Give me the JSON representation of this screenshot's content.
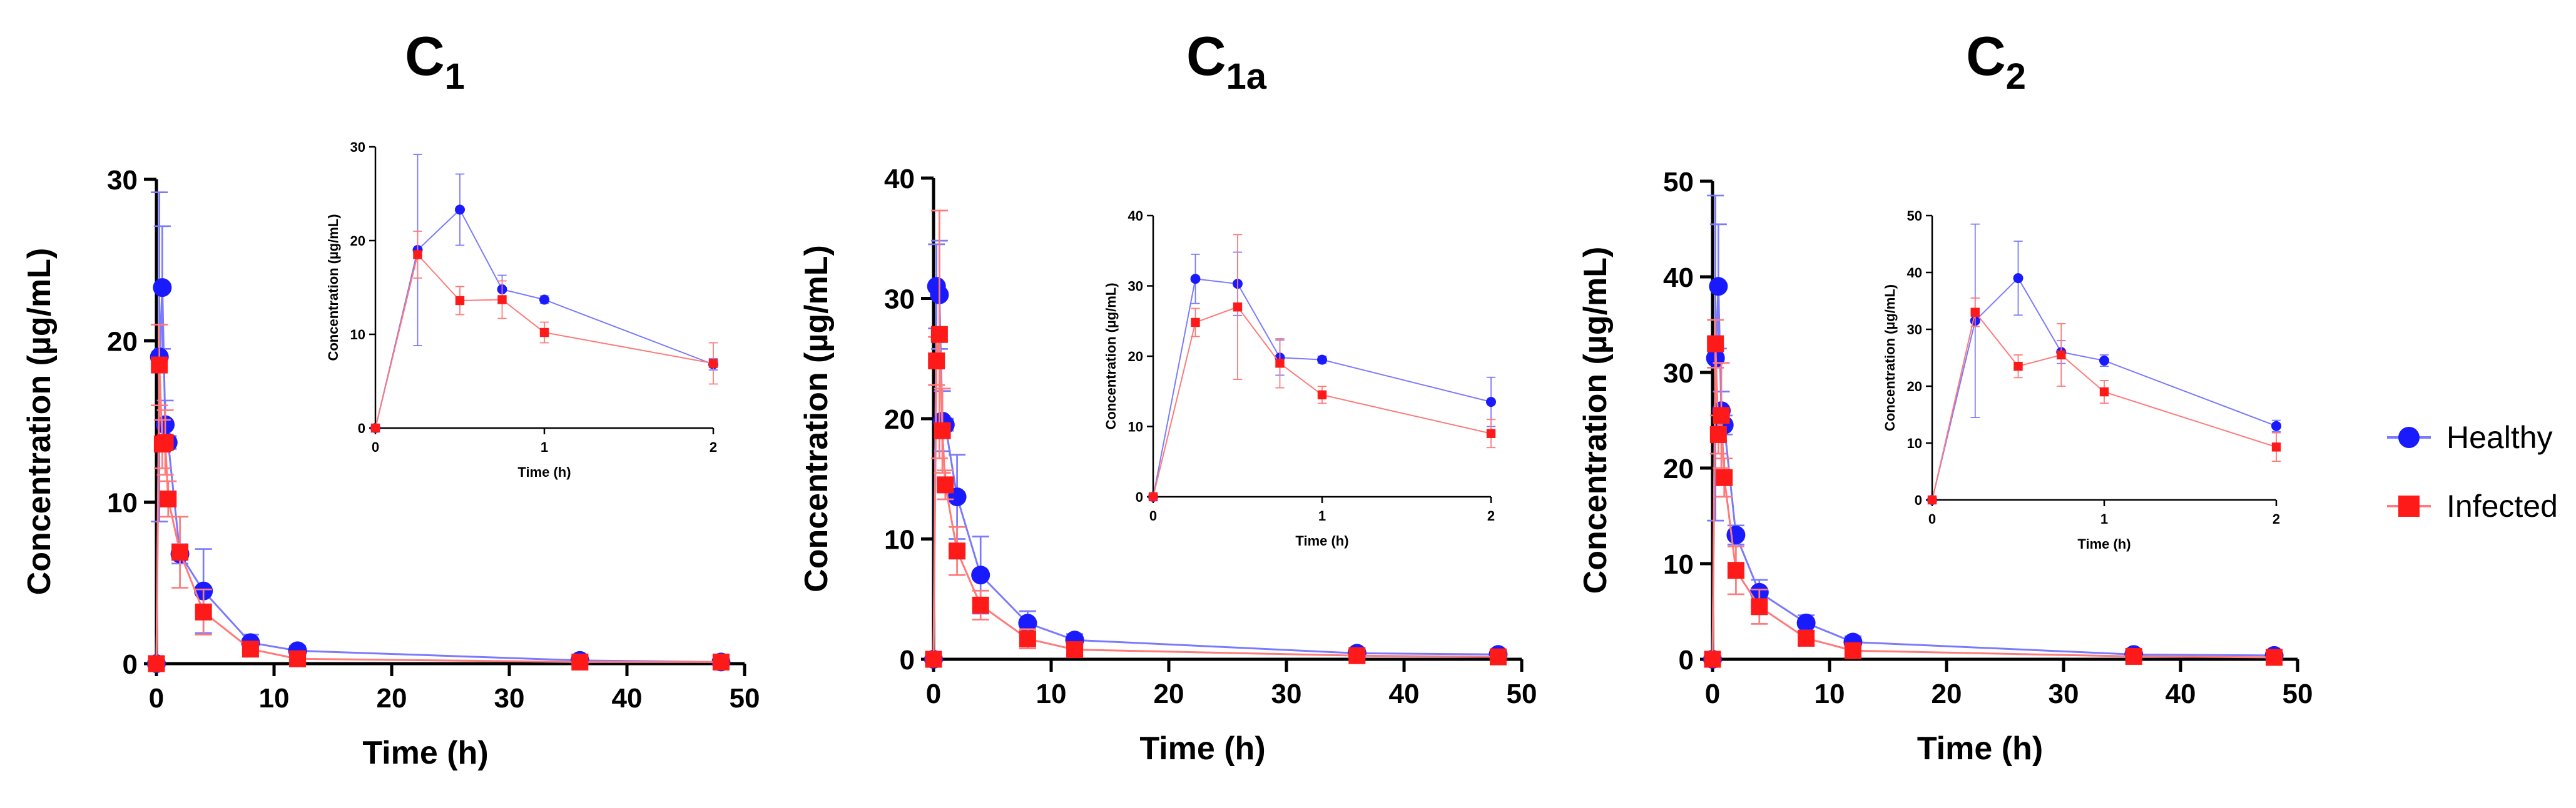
{
  "colors": {
    "healthy": "#1a1aff",
    "infected": "#ff1a1a",
    "healthy_line": "#7a7aff",
    "infected_line": "#ff7a7a",
    "axis": "#000000"
  },
  "legend": {
    "items": [
      {
        "label": "Healthy",
        "series": "healthy",
        "marker": "circle"
      },
      {
        "label": "Infected",
        "series": "infected",
        "marker": "square"
      }
    ],
    "position": "right"
  },
  "chart_data": [
    {
      "type": "line",
      "title": "C",
      "title_subscript": "1",
      "xlabel": "Time (h)",
      "ylabel": "Concentration (µg/mL)",
      "xlim": [
        0,
        50
      ],
      "ylim": [
        0,
        30
      ],
      "xticks": [
        0,
        10,
        20,
        30,
        40,
        50
      ],
      "yticks": [
        0,
        10,
        20,
        30
      ],
      "x": [
        0,
        0.25,
        0.5,
        0.75,
        1,
        2,
        4,
        8,
        12,
        36,
        48
      ],
      "series": [
        {
          "name": "Healthy",
          "values": [
            0,
            19,
            23.3,
            14.8,
            13.7,
            6.8,
            4.5,
            1.3,
            0.8,
            0.2,
            0.1
          ],
          "err": [
            0,
            10.2,
            3.8,
            1.5,
            0.4,
            0.6,
            2.6,
            0.5,
            0.3,
            0.2,
            0.1
          ]
        },
        {
          "name": "Infected",
          "values": [
            0,
            18.5,
            13.6,
            13.7,
            10.2,
            6.9,
            3.2,
            0.9,
            0.3,
            0.1,
            0.1
          ],
          "err": [
            0,
            2.5,
            1.5,
            2,
            1.1,
            2.2,
            1.4,
            0.4,
            0.2,
            0.1,
            0.1
          ]
        }
      ],
      "inset": {
        "xlabel": "Time (h)",
        "ylabel": "Concentration (µg/mL)",
        "xlim": [
          0,
          2
        ],
        "ylim": [
          0,
          30
        ],
        "xticks": [
          0,
          1,
          2
        ],
        "yticks": [
          0,
          10,
          20,
          30
        ],
        "x": [
          0,
          0.25,
          0.5,
          0.75,
          1,
          2
        ],
        "series": [
          {
            "name": "Healthy",
            "values": [
              0,
              19,
              23.3,
              14.8,
              13.7,
              6.8
            ],
            "err": [
              0,
              10.2,
              3.8,
              1.5,
              0.4,
              0.6
            ]
          },
          {
            "name": "Infected",
            "values": [
              0,
              18.5,
              13.6,
              13.7,
              10.2,
              6.9
            ],
            "err": [
              0,
              2.5,
              1.5,
              2,
              1.1,
              2.2
            ]
          }
        ]
      }
    },
    {
      "type": "line",
      "title": "C",
      "title_subscript": "1a",
      "xlabel": "Time (h)",
      "ylabel": "Concentration (µg/mL)",
      "xlim": [
        0,
        50
      ],
      "ylim": [
        0,
        40
      ],
      "xticks": [
        0,
        10,
        20,
        30,
        40,
        50
      ],
      "yticks": [
        0,
        10,
        20,
        30,
        40
      ],
      "x": [
        0,
        0.25,
        0.5,
        0.75,
        1,
        2,
        4,
        8,
        12,
        36,
        48
      ],
      "series": [
        {
          "name": "Healthy",
          "values": [
            0,
            31,
            30.3,
            19.8,
            19.5,
            13.5,
            7,
            3,
            1.6,
            0.5,
            0.4
          ],
          "err": [
            0,
            3.5,
            4.5,
            2.5,
            0.5,
            3.5,
            3.2,
            1,
            0.5,
            0.3,
            0.2
          ]
        },
        {
          "name": "Infected",
          "values": [
            0,
            24.8,
            27,
            19,
            14.5,
            9,
            4.5,
            1.7,
            0.8,
            0.3,
            0.2
          ],
          "err": [
            0,
            2,
            10.3,
            3.5,
            1.2,
            2,
            1.2,
            0.8,
            0.4,
            0.2,
            0.1
          ]
        }
      ],
      "inset": {
        "xlabel": "Time (h)",
        "ylabel": "Concentration (µg/mL)",
        "xlim": [
          0,
          2
        ],
        "ylim": [
          0,
          40
        ],
        "xticks": [
          0,
          1,
          2
        ],
        "yticks": [
          0,
          10,
          20,
          30,
          40
        ],
        "x": [
          0,
          0.25,
          0.5,
          0.75,
          1,
          2
        ],
        "series": [
          {
            "name": "Healthy",
            "values": [
              0,
              31,
              30.3,
              19.8,
              19.5,
              13.5
            ],
            "err": [
              0,
              3.5,
              4.5,
              2.5,
              0.5,
              3.5
            ]
          },
          {
            "name": "Infected",
            "values": [
              0,
              24.8,
              27,
              19,
              14.5,
              9
            ],
            "err": [
              0,
              2,
              10.3,
              3.5,
              1.2,
              2
            ]
          }
        ]
      }
    },
    {
      "type": "line",
      "title": "C",
      "title_subscript": "2",
      "xlabel": "Time (h)",
      "ylabel": "Concentration (µg/mL)",
      "xlim": [
        0,
        50
      ],
      "ylim": [
        0,
        50
      ],
      "xticks": [
        0,
        10,
        20,
        30,
        40,
        50
      ],
      "yticks": [
        0,
        10,
        20,
        30,
        40,
        50
      ],
      "x": [
        0,
        0.25,
        0.5,
        0.75,
        1,
        2,
        4,
        8,
        12,
        36,
        48
      ],
      "series": [
        {
          "name": "Healthy",
          "values": [
            0,
            31.5,
            39,
            26,
            24.5,
            13,
            7,
            3.8,
            1.8,
            0.5,
            0.4
          ],
          "err": [
            0,
            17,
            6.5,
            2,
            1,
            1,
            1.3,
            0.8,
            0.6,
            0.3,
            0.2
          ]
        },
        {
          "name": "Infected",
          "values": [
            0,
            33,
            23.5,
            25.5,
            19,
            9.3,
            5.5,
            2.2,
            0.9,
            0.3,
            0.2
          ],
          "err": [
            0,
            2.5,
            2,
            5.5,
            2,
            2.5,
            1.8,
            0.8,
            0.4,
            0.2,
            0.1
          ]
        }
      ],
      "inset": {
        "xlabel": "Time (h)",
        "ylabel": "Concentration (µg/mL)",
        "xlim": [
          0,
          2
        ],
        "ylim": [
          0,
          50
        ],
        "xticks": [
          0,
          1,
          2
        ],
        "yticks": [
          0,
          10,
          20,
          30,
          40,
          50
        ],
        "x": [
          0,
          0.25,
          0.5,
          0.75,
          1,
          2
        ],
        "series": [
          {
            "name": "Healthy",
            "values": [
              0,
              31.5,
              39,
              26,
              24.5,
              13
            ],
            "err": [
              0,
              17,
              6.5,
              2,
              1,
              1
            ]
          },
          {
            "name": "Infected",
            "values": [
              0,
              33,
              23.5,
              25.5,
              19,
              9.3
            ],
            "err": [
              0,
              2.5,
              2,
              5.5,
              2,
              2.5
            ]
          }
        ]
      }
    }
  ]
}
